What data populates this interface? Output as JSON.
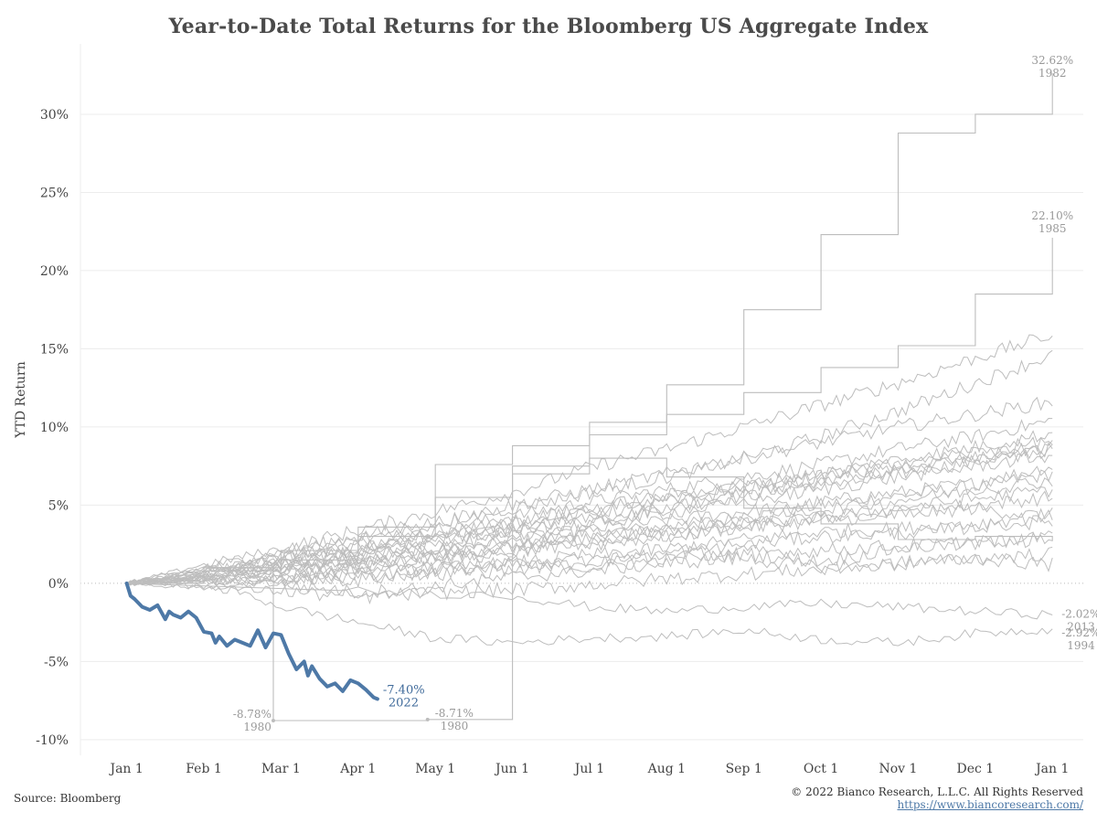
{
  "title": "Year-to-Date Total Returns for the Bloomberg US Aggregate Index",
  "source": "Source: Bloomberg",
  "copyright": "© 2022 Bianco Research, L.L.C. All Rights Reserved",
  "website": "https://www.biancoresearch.com/",
  "colors": {
    "highlight": "#4e79a7",
    "history": "#bdbdbd",
    "grid": "#ececec",
    "annotation": "#999999"
  },
  "chart_data": {
    "type": "line",
    "ylabel": "YTD Return",
    "xlabel": "",
    "ylim": [
      -11,
      34.5
    ],
    "xlim": [
      -0.6,
      12.4
    ],
    "y_ticks": [
      30,
      25,
      20,
      15,
      10,
      5,
      0,
      -5,
      -10
    ],
    "y_tick_labels": [
      "30%",
      "25%",
      "20%",
      "15%",
      "10%",
      "5%",
      "0%",
      "-5%",
      "-10%"
    ],
    "x_tick_labels": [
      "Jan 1",
      "Feb 1",
      "Mar 1",
      "Apr 1",
      "May 1",
      "Jun 1",
      "Jul 1",
      "Aug 1",
      "Sep 1",
      "Oct 1",
      "Nov 1",
      "Dec 1",
      "Jan 1"
    ],
    "grid": true,
    "highlight_series": {
      "name": "2022",
      "x": [
        0,
        0.05,
        0.1,
        0.2,
        0.3,
        0.4,
        0.5,
        0.55,
        0.6,
        0.7,
        0.8,
        0.9,
        1.0,
        1.1,
        1.15,
        1.2,
        1.3,
        1.4,
        1.5,
        1.6,
        1.7,
        1.8,
        1.9,
        2.0,
        2.1,
        2.2,
        2.3,
        2.35,
        2.4,
        2.5,
        2.6,
        2.7,
        2.8,
        2.9,
        3.0,
        3.1,
        3.2,
        3.25
      ],
      "y": [
        0,
        -0.8,
        -1.0,
        -1.5,
        -1.7,
        -1.4,
        -2.3,
        -1.8,
        -2.0,
        -2.2,
        -1.8,
        -2.2,
        -3.1,
        -3.2,
        -3.8,
        -3.4,
        -4.0,
        -3.6,
        -3.8,
        -4.0,
        -3.0,
        -4.1,
        -3.2,
        -3.3,
        -4.5,
        -5.5,
        -5.0,
        -5.9,
        -5.3,
        -6.1,
        -6.6,
        -6.4,
        -6.9,
        -6.2,
        -6.4,
        -6.8,
        -7.3,
        -7.4
      ]
    },
    "annotations": [
      {
        "value": "32.62%",
        "year": "1982"
      },
      {
        "value": "22.10%",
        "year": "1985"
      },
      {
        "value": "-2.02%",
        "year": "2013"
      },
      {
        "value": "-2.92%",
        "year": "1994"
      },
      {
        "value": "-7.40%",
        "year": "2022"
      },
      {
        "value": "-8.78%",
        "year": "1980"
      },
      {
        "value": "-8.71%",
        "year": "1980"
      }
    ],
    "series_1982_steps": {
      "x": [
        0,
        1,
        2,
        3,
        4,
        5,
        6,
        7,
        8,
        9,
        10,
        11,
        12
      ],
      "y": [
        0,
        0.8,
        1.5,
        3.0,
        7.6,
        8.8,
        10.3,
        12.7,
        17.5,
        22.3,
        28.8,
        30.0,
        32.62
      ]
    },
    "series_1985_steps": {
      "x": [
        0,
        1,
        2,
        3,
        4,
        5,
        6,
        7,
        8,
        9,
        10,
        11,
        12
      ],
      "y": [
        0,
        1.0,
        2.1,
        3.6,
        5.5,
        7.0,
        9.5,
        10.8,
        12.2,
        13.8,
        15.2,
        18.5,
        22.1
      ]
    },
    "series_1980_steps": {
      "x": [
        0,
        1,
        1.9,
        3.9,
        5,
        6,
        7,
        8,
        9,
        10,
        11,
        12
      ],
      "y": [
        0,
        1.0,
        -8.78,
        -8.71,
        7.5,
        8.0,
        6.8,
        4.8,
        3.8,
        2.8,
        3.0,
        2.7
      ]
    },
    "series_2013": {
      "x": [
        0,
        3,
        5,
        6,
        7,
        8,
        9,
        10,
        11,
        12
      ],
      "y": [
        0,
        -0.5,
        -0.8,
        -1.5,
        -1.8,
        -1.5,
        -1.3,
        -1.5,
        -1.8,
        -2.02
      ]
    },
    "series_1994": {
      "x": [
        0,
        1,
        2,
        3,
        4,
        5,
        6,
        7,
        8,
        9,
        10,
        11,
        12
      ],
      "y": [
        0,
        0.2,
        -1.5,
        -2.5,
        -3.5,
        -3.8,
        -3.5,
        -3.4,
        -3.0,
        -3.6,
        -3.8,
        -3.2,
        -2.92
      ]
    },
    "background_series": [
      [
        0.4,
        0.8,
        1.5,
        2.0,
        2.6,
        3.2,
        3.6,
        4.2,
        5.0,
        5.6,
        6.2,
        7.0
      ],
      [
        0.6,
        1.2,
        1.8,
        2.6,
        3.4,
        4.0,
        4.8,
        5.6,
        6.4,
        7.0,
        7.8,
        8.6
      ],
      [
        0.5,
        1.0,
        1.6,
        2.2,
        2.8,
        3.4,
        4.0,
        4.6,
        5.2,
        5.8,
        6.4,
        7.5
      ],
      [
        0.8,
        1.6,
        2.4,
        3.4,
        4.3,
        5.2,
        6.0,
        6.8,
        7.6,
        8.6,
        9.4,
        10.4
      ],
      [
        0.3,
        0.8,
        1.2,
        1.8,
        2.4,
        3.0,
        3.4,
        3.8,
        4.2,
        4.6,
        5.0,
        5.5
      ],
      [
        0.2,
        0.5,
        1.0,
        1.4,
        2.0,
        2.6,
        3.0,
        3.6,
        4.0,
        4.4,
        4.8,
        4.2
      ],
      [
        1.0,
        2.0,
        3.0,
        3.9,
        4.8,
        5.8,
        6.8,
        8.0,
        9.4,
        11.0,
        12.8,
        14.6
      ],
      [
        1.2,
        2.2,
        3.4,
        4.6,
        5.8,
        7.4,
        8.6,
        10.0,
        11.4,
        12.8,
        14.4,
        15.9
      ],
      [
        0.9,
        1.8,
        2.8,
        3.8,
        5.0,
        6.0,
        7.0,
        8.0,
        9.0,
        10.0,
        10.8,
        11.6
      ],
      [
        0.6,
        1.4,
        2.0,
        2.8,
        3.6,
        4.4,
        5.2,
        6.0,
        6.8,
        7.4,
        8.0,
        8.8
      ],
      [
        0.4,
        0.9,
        1.3,
        1.7,
        2.1,
        2.5,
        3.0,
        3.6,
        4.2,
        4.8,
        5.4,
        6.0
      ],
      [
        -0.2,
        0.2,
        0.6,
        0.9,
        1.3,
        1.8,
        2.2,
        2.8,
        3.3,
        3.5,
        3.8,
        4.4
      ],
      [
        0.3,
        0.4,
        0.2,
        0.8,
        1.2,
        1.0,
        1.5,
        1.9,
        1.4,
        2.2,
        2.6,
        3.0
      ],
      [
        0.2,
        0.0,
        -0.6,
        -0.2,
        0.4,
        0.8,
        1.3,
        1.6,
        1.0,
        1.2,
        1.6,
        1.9
      ],
      [
        0.5,
        1.1,
        1.7,
        2.3,
        3.0,
        3.8,
        4.5,
        5.2,
        6.0,
        6.8,
        7.5,
        8.2
      ],
      [
        0.7,
        1.5,
        2.2,
        3.1,
        3.9,
        4.8,
        5.6,
        6.3,
        7.0,
        7.9,
        8.7,
        9.6
      ],
      [
        0.1,
        0.4,
        0.9,
        1.0,
        1.2,
        1.5,
        1.8,
        2.0,
        2.1,
        2.4,
        2.6,
        2.8
      ],
      [
        0.3,
        0.7,
        1.1,
        1.6,
        2.3,
        2.9,
        3.5,
        4.1,
        4.7,
        5.3,
        6.0,
        6.6
      ],
      [
        0.8,
        1.7,
        2.5,
        3.2,
        3.9,
        4.7,
        5.4,
        6.2,
        6.9,
        7.7,
        8.4,
        9.1
      ],
      [
        0.2,
        0.2,
        0.5,
        0.6,
        0.9,
        1.4,
        1.9,
        2.5,
        3.0,
        3.2,
        3.6,
        4.0
      ],
      [
        -0.3,
        -0.5,
        -0.9,
        -0.6,
        -0.4,
        -0.1,
        0.3,
        0.6,
        0.9,
        1.3,
        1.6,
        1.2
      ],
      [
        0.6,
        1.3,
        1.9,
        2.7,
        3.4,
        4.1,
        4.9,
        5.7,
        6.5,
        7.2,
        7.9,
        8.5
      ]
    ]
  }
}
